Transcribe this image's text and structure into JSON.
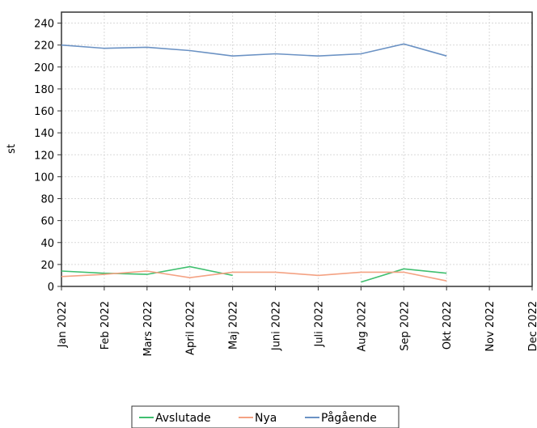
{
  "chart_data": {
    "type": "line",
    "ylabel": "st",
    "xlabel": "",
    "categories": [
      "Jan 2022",
      "Feb 2022",
      "Mars 2022",
      "April 2022",
      "Maj 2022",
      "Juni 2022",
      "Juli 2022",
      "Aug 2022",
      "Sep 2022",
      "Okt 2022",
      "Nov 2022",
      "Dec 2022"
    ],
    "ylim": [
      0,
      250
    ],
    "yticks": [
      0,
      20,
      40,
      60,
      80,
      100,
      120,
      140,
      160,
      180,
      200,
      220,
      240
    ],
    "grid": true,
    "legend_position": "bottom",
    "series": [
      {
        "name": "Avslutade",
        "color": "#3fbf6f",
        "values": [
          14,
          12,
          11,
          18,
          10,
          null,
          null,
          4,
          16,
          12,
          null,
          null
        ]
      },
      {
        "name": "Nya",
        "color": "#f4a283",
        "values": [
          9,
          11,
          14,
          8,
          13,
          13,
          10,
          13,
          13,
          5,
          null,
          null
        ]
      },
      {
        "name": "Pågående",
        "color": "#6b92c4",
        "values": [
          220,
          217,
          218,
          215,
          210,
          212,
          210,
          212,
          221,
          210,
          null,
          null
        ]
      }
    ]
  }
}
